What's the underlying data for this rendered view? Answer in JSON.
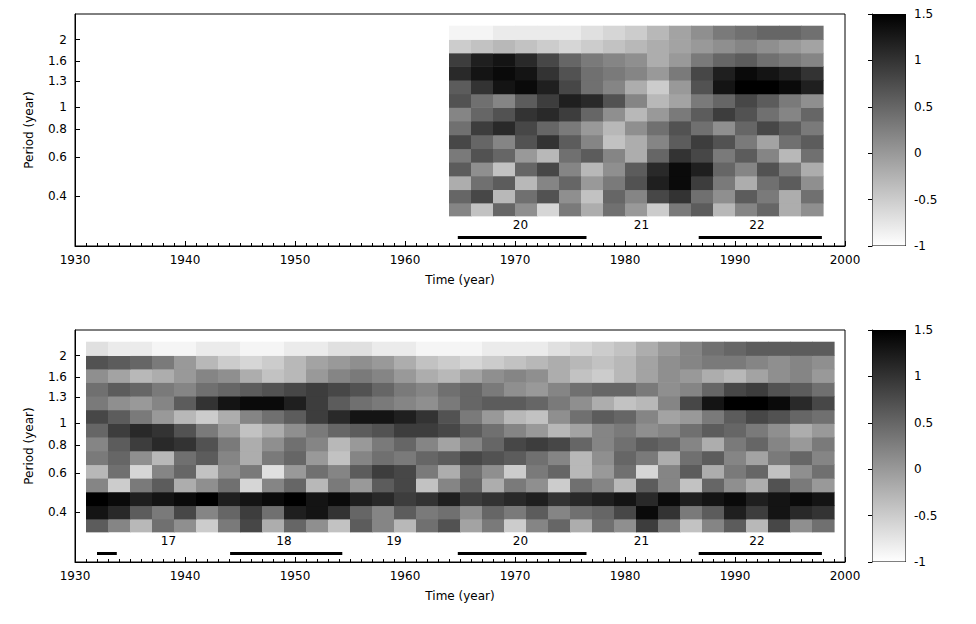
{
  "chart_data": [
    {
      "type": "heatmap",
      "x_label": "Time (year)",
      "y_label": "Period (year)",
      "xlim": [
        1930,
        2000
      ],
      "xticks": [
        1930,
        1940,
        1950,
        1960,
        1970,
        1980,
        1990,
        2000
      ],
      "ylim": [
        0.24,
        2.6
      ],
      "yticks": [
        0.4,
        0.6,
        0.8,
        1,
        1.3,
        1.6,
        2
      ],
      "log": "y",
      "grid": false,
      "x": [
        1965,
        1967,
        1969,
        1971,
        1973,
        1975,
        1977,
        1979,
        1981,
        1983,
        1985,
        1987,
        1989,
        1991,
        1993,
        1995,
        1997
      ],
      "y": [
        0.35,
        0.4,
        0.46,
        0.53,
        0.61,
        0.7,
        0.81,
        0.93,
        1.07,
        1.23,
        1.42,
        1.63,
        1.87,
        2.15
      ],
      "values": [
        [
          0.2,
          -0.4,
          0.5,
          0.1,
          -0.6,
          0.3,
          -0.2,
          0.4,
          0.0,
          -0.5,
          0.3,
          0.6,
          -0.3,
          0.2,
          0.5,
          -0.2,
          0.1
        ],
        [
          0.5,
          0.8,
          -0.3,
          0.4,
          0.7,
          0.1,
          -0.4,
          0.5,
          0.2,
          0.8,
          1.0,
          0.4,
          0.1,
          0.6,
          0.3,
          -0.2,
          0.4
        ],
        [
          -0.2,
          0.4,
          0.6,
          -0.3,
          0.2,
          0.5,
          0.0,
          0.3,
          0.7,
          1.2,
          1.4,
          0.9,
          0.3,
          -0.2,
          0.4,
          0.6,
          0.1
        ],
        [
          0.6,
          0.1,
          -0.4,
          0.5,
          0.8,
          0.2,
          -0.3,
          0.1,
          0.6,
          1.1,
          1.4,
          1.2,
          0.5,
          0.2,
          0.7,
          0.3,
          -0.2
        ],
        [
          0.3,
          0.7,
          0.5,
          0.0,
          -0.3,
          0.4,
          0.6,
          0.2,
          -0.2,
          0.5,
          1.0,
          0.8,
          0.3,
          0.6,
          0.2,
          -0.3,
          0.4
        ],
        [
          0.8,
          0.5,
          0.2,
          0.7,
          1.0,
          0.6,
          0.2,
          -0.4,
          -0.2,
          0.2,
          0.6,
          0.9,
          0.7,
          0.3,
          -0.1,
          0.4,
          0.6
        ],
        [
          0.4,
          0.9,
          1.1,
          0.8,
          0.5,
          0.3,
          0.0,
          -0.3,
          0.1,
          0.4,
          0.7,
          0.4,
          0.1,
          0.5,
          0.8,
          0.6,
          0.3
        ],
        [
          0.2,
          0.5,
          0.7,
          1.0,
          1.1,
          0.9,
          0.5,
          0.1,
          -0.3,
          0.0,
          0.3,
          0.6,
          0.9,
          0.7,
          0.4,
          0.2,
          0.5
        ],
        [
          0.7,
          0.4,
          0.2,
          0.6,
          0.9,
          1.2,
          1.1,
          0.7,
          0.2,
          -0.3,
          -0.1,
          0.3,
          0.5,
          0.8,
          0.6,
          0.3,
          0.1
        ],
        [
          0.6,
          1.0,
          1.3,
          1.4,
          1.2,
          0.8,
          0.4,
          0.2,
          -0.2,
          -0.5,
          0.0,
          0.7,
          1.3,
          1.5,
          1.5,
          1.4,
          1.2
        ],
        [
          1.1,
          1.3,
          1.4,
          1.3,
          1.0,
          0.7,
          0.4,
          0.3,
          0.2,
          0.0,
          0.3,
          0.8,
          1.2,
          1.4,
          1.3,
          1.2,
          1.0
        ],
        [
          0.9,
          1.2,
          1.3,
          1.1,
          0.8,
          0.5,
          0.3,
          0.2,
          0.1,
          -0.2,
          0.0,
          0.3,
          0.5,
          0.6,
          0.4,
          0.3,
          0.2
        ],
        [
          -0.5,
          -0.4,
          -0.3,
          -0.4,
          -0.5,
          -0.6,
          -0.5,
          -0.4,
          -0.3,
          -0.2,
          -0.1,
          0.0,
          0.1,
          0.2,
          0.1,
          0.0,
          -0.1
        ],
        [
          -0.9,
          -0.9,
          -0.8,
          -0.8,
          -0.8,
          -0.8,
          -0.7,
          -0.6,
          -0.5,
          -0.3,
          -0.1,
          0.1,
          0.3,
          0.4,
          0.5,
          0.5,
          0.4
        ]
      ],
      "colorbar": {
        "range": [
          -1,
          1.5
        ],
        "ticks": [
          -1,
          -0.5,
          0,
          0.5,
          1,
          1.5
        ]
      },
      "cycles": [
        {
          "label": "20",
          "x": 1970.5
        },
        {
          "label": "21",
          "x": 1981.5
        },
        {
          "label": "22",
          "x": 1992
        }
      ],
      "cycle_bars": [
        [
          1964.8,
          1976.5
        ],
        [
          1986.7,
          1997.9
        ]
      ]
    },
    {
      "type": "heatmap",
      "x_label": "Time (year)",
      "y_label": "Period (year)",
      "xlim": [
        1930,
        2000
      ],
      "xticks": [
        1930,
        1940,
        1950,
        1960,
        1970,
        1980,
        1990,
        2000
      ],
      "ylim": [
        0.24,
        2.6
      ],
      "yticks": [
        0.4,
        0.6,
        0.8,
        1,
        1.3,
        1.6,
        2
      ],
      "log": "y",
      "grid": false,
      "x": [
        1932,
        1934,
        1936,
        1938,
        1940,
        1942,
        1944,
        1946,
        1948,
        1950,
        1952,
        1954,
        1956,
        1958,
        1960,
        1962,
        1964,
        1966,
        1968,
        1970,
        1972,
        1974,
        1976,
        1978,
        1980,
        1982,
        1984,
        1986,
        1988,
        1990,
        1992,
        1994,
        1996,
        1998
      ],
      "y": [
        0.35,
        0.4,
        0.46,
        0.53,
        0.61,
        0.7,
        0.81,
        0.93,
        1.07,
        1.23,
        1.42,
        1.63,
        1.87,
        2.15
      ],
      "values": [
        [
          0.6,
          0.2,
          -0.3,
          0.4,
          0.1,
          -0.5,
          0.3,
          0.8,
          -0.2,
          0.5,
          0.1,
          -0.4,
          0.6,
          0.2,
          -0.3,
          0.4,
          0.7,
          -0.1,
          0.3,
          -0.5,
          0.2,
          0.5,
          -0.2,
          0.4,
          0.1,
          0.9,
          0.3,
          -0.4,
          0.2,
          0.6,
          -0.3,
          0.8,
          0.1,
          0.4
        ],
        [
          1.3,
          1.1,
          0.6,
          0.3,
          0.8,
          0.2,
          0.5,
          0.9,
          0.4,
          1.2,
          1.3,
          1.0,
          0.5,
          0.2,
          0.6,
          0.3,
          0.4,
          0.1,
          0.5,
          0.3,
          0.6,
          0.2,
          0.4,
          0.5,
          0.8,
          1.4,
          1.0,
          0.3,
          0.6,
          1.2,
          0.9,
          1.3,
          1.1,
          1.0
        ],
        [
          1.5,
          1.4,
          1.2,
          1.3,
          1.4,
          1.5,
          1.2,
          1.3,
          1.4,
          1.5,
          1.3,
          1.4,
          1.2,
          1.1,
          0.9,
          1.0,
          1.2,
          0.9,
          1.0,
          1.1,
          1.2,
          1.0,
          1.1,
          1.2,
          1.3,
          1.1,
          1.4,
          1.2,
          1.3,
          1.4,
          1.2,
          1.3,
          1.4,
          1.3
        ],
        [
          0.2,
          -0.5,
          0.3,
          0.6,
          -0.2,
          0.1,
          0.4,
          -0.6,
          0.2,
          0.5,
          -0.3,
          0.3,
          0.0,
          0.6,
          0.8,
          -0.4,
          0.2,
          0.5,
          -0.2,
          0.3,
          0.1,
          -0.5,
          0.4,
          0.2,
          -0.3,
          0.6,
          0.2,
          -0.4,
          0.5,
          0.1,
          -0.2,
          0.7,
          0.3,
          0.0
        ],
        [
          -0.3,
          0.4,
          -0.6,
          0.2,
          0.5,
          -0.4,
          0.1,
          0.3,
          -0.7,
          0.0,
          0.4,
          0.2,
          0.6,
          0.9,
          0.8,
          0.3,
          -0.2,
          0.4,
          0.1,
          -0.5,
          0.3,
          0.5,
          -0.3,
          0.0,
          0.4,
          -0.6,
          0.2,
          0.6,
          -0.2,
          0.3,
          0.5,
          -0.4,
          0.1,
          0.4
        ],
        [
          0.3,
          0.5,
          0.1,
          -0.3,
          0.4,
          0.6,
          0.2,
          -0.2,
          0.3,
          0.5,
          0.0,
          -0.4,
          0.2,
          0.4,
          0.3,
          0.5,
          0.6,
          0.8,
          0.7,
          0.6,
          0.4,
          0.2,
          -0.3,
          0.1,
          0.5,
          0.3,
          -0.2,
          0.4,
          0.6,
          0.2,
          -0.1,
          0.3,
          0.5,
          0.2
        ],
        [
          0.2,
          0.6,
          0.9,
          1.1,
          1.0,
          0.7,
          0.3,
          -0.2,
          0.1,
          0.4,
          0.2,
          -0.3,
          0.0,
          0.3,
          0.5,
          0.2,
          -0.1,
          0.2,
          0.5,
          0.8,
          0.9,
          0.8,
          0.5,
          0.2,
          0.4,
          0.6,
          0.5,
          0.2,
          -0.2,
          0.3,
          0.5,
          0.2,
          0.0,
          0.3
        ],
        [
          0.5,
          0.9,
          1.1,
          1.0,
          0.7,
          0.3,
          0.0,
          -0.4,
          -0.2,
          0.1,
          0.3,
          0.5,
          0.6,
          0.7,
          0.9,
          0.9,
          0.8,
          0.6,
          0.4,
          0.2,
          0.0,
          -0.3,
          -0.1,
          0.2,
          0.3,
          0.1,
          0.2,
          0.4,
          0.6,
          0.5,
          0.3,
          0.1,
          -0.2,
          0.0
        ],
        [
          0.8,
          0.6,
          0.3,
          0.0,
          -0.3,
          -0.5,
          -0.2,
          0.2,
          0.4,
          0.6,
          0.9,
          1.1,
          1.3,
          1.3,
          1.2,
          1.0,
          0.7,
          0.3,
          0.0,
          -0.3,
          -0.4,
          0.1,
          0.4,
          0.6,
          0.5,
          0.2,
          -0.1,
          0.0,
          0.3,
          0.6,
          0.8,
          0.7,
          0.5,
          0.4
        ],
        [
          0.3,
          0.1,
          0.0,
          0.2,
          0.6,
          1.0,
          1.3,
          1.4,
          1.4,
          1.2,
          0.9,
          0.6,
          0.4,
          0.3,
          0.2,
          0.1,
          0.3,
          0.5,
          0.6,
          0.6,
          0.5,
          0.3,
          0.1,
          -0.2,
          -0.4,
          -0.3,
          0.2,
          0.8,
          1.3,
          1.5,
          1.5,
          1.4,
          1.1,
          0.8
        ],
        [
          0.4,
          0.6,
          0.5,
          0.3,
          0.2,
          0.4,
          0.5,
          0.6,
          0.7,
          0.8,
          0.9,
          0.8,
          0.7,
          0.5,
          0.3,
          0.2,
          0.4,
          0.5,
          0.3,
          0.1,
          0.0,
          0.2,
          0.4,
          0.5,
          0.5,
          0.3,
          0.1,
          0.2,
          0.5,
          0.8,
          0.9,
          0.7,
          0.6,
          0.4
        ],
        [
          0.1,
          -0.1,
          -0.3,
          -0.2,
          0.0,
          0.2,
          0.1,
          -0.2,
          -0.4,
          -0.3,
          0.0,
          0.2,
          0.3,
          0.2,
          0.0,
          -0.2,
          -0.3,
          -0.1,
          0.1,
          0.2,
          0.1,
          -0.2,
          -0.4,
          -0.5,
          -0.3,
          -0.1,
          0.1,
          0.0,
          -0.2,
          -0.3,
          -0.1,
          0.1,
          0.2,
          0.0
        ],
        [
          0.7,
          0.6,
          0.5,
          0.3,
          0.0,
          -0.3,
          -0.5,
          -0.6,
          -0.5,
          -0.3,
          -0.1,
          0.0,
          0.1,
          0.0,
          -0.2,
          -0.4,
          -0.5,
          -0.6,
          -0.5,
          -0.4,
          -0.3,
          -0.2,
          -0.3,
          -0.4,
          -0.3,
          -0.1,
          0.1,
          0.2,
          0.3,
          0.3,
          0.2,
          0.1,
          0.2,
          0.1
        ],
        [
          -0.7,
          -0.8,
          -0.8,
          -0.9,
          -0.9,
          -0.8,
          -0.8,
          -0.9,
          -0.9,
          -0.8,
          -0.8,
          -0.7,
          -0.7,
          -0.8,
          -0.8,
          -0.9,
          -0.9,
          -0.9,
          -0.8,
          -0.8,
          -0.8,
          -0.7,
          -0.6,
          -0.5,
          -0.4,
          -0.2,
          0.0,
          0.2,
          0.4,
          0.5,
          0.6,
          0.6,
          0.6,
          0.6
        ]
      ],
      "colorbar": {
        "range": [
          -1,
          1.5
        ],
        "ticks": [
          -1,
          -0.5,
          0,
          0.5,
          1,
          1.5
        ]
      },
      "cycles": [
        {
          "label": "17",
          "x": 1938.5
        },
        {
          "label": "18",
          "x": 1949
        },
        {
          "label": "19",
          "x": 1959
        },
        {
          "label": "20",
          "x": 1970.5
        },
        {
          "label": "21",
          "x": 1981.5
        },
        {
          "label": "22",
          "x": 1992
        }
      ],
      "cycle_bars": [
        [
          1932,
          1933.8
        ],
        [
          1944.1,
          1954.3
        ],
        [
          1964.8,
          1976.5
        ],
        [
          1986.7,
          1997.9
        ]
      ]
    }
  ]
}
